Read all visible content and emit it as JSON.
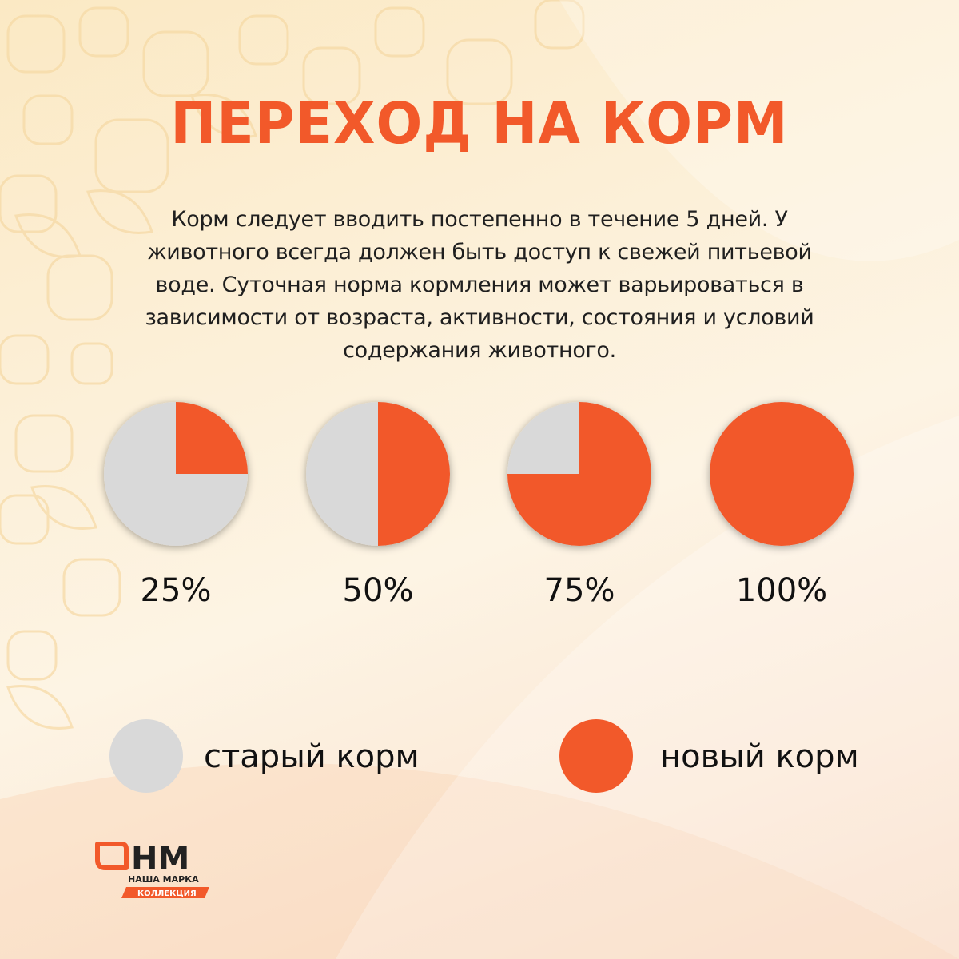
{
  "title": "ПЕРЕХОД НА КОРМ",
  "description": "Корм следует вводить постепенно в течение 5 дней. У животного всегда должен быть доступ к свежей питьевой воде. Суточная норма кормления может варьироваться в зависимости от возраста, активности, состояния и условий содержания животного.",
  "colors": {
    "accent": "#f2592a",
    "old_food": "#d9d9d9",
    "new_food": "#f2592a",
    "text": "#111111"
  },
  "chart_data": {
    "type": "pie",
    "charts": [
      {
        "label": "25%",
        "new_food_share": 25,
        "old_food_share": 75
      },
      {
        "label": "50%",
        "new_food_share": 50,
        "old_food_share": 50
      },
      {
        "label": "75%",
        "new_food_share": 75,
        "old_food_share": 25
      },
      {
        "label": "100%",
        "new_food_share": 100,
        "old_food_share": 0
      }
    ],
    "legend": [
      {
        "key": "old",
        "label": "старый корм",
        "color": "#d9d9d9"
      },
      {
        "key": "new",
        "label": "новый корм",
        "color": "#f2592a"
      }
    ]
  },
  "logo": {
    "letters": "НМ",
    "line1": "НАША МАРКА",
    "line2": "КОЛЛЕКЦИЯ"
  }
}
